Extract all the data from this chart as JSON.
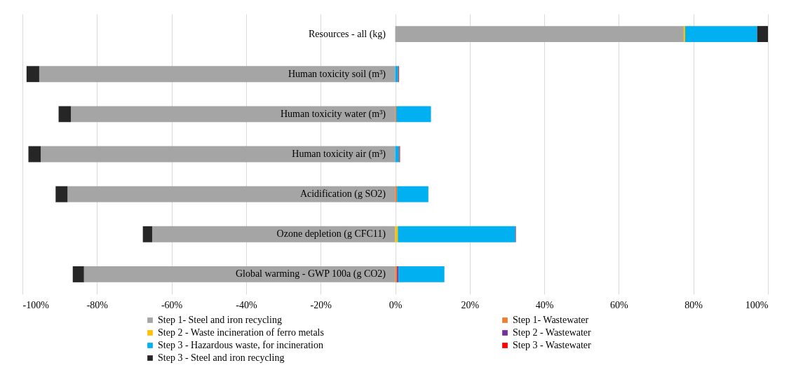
{
  "chart_data": {
    "type": "bar",
    "orientation": "horizontal",
    "stacked": true,
    "grid": "x",
    "legend": "bottom",
    "categories": [
      "Resources - all (kg)",
      "Human toxicity soil (m³)",
      "Human toxicity water  (m³)",
      "Human toxicity air (m³)",
      "Acidification (g SO2)",
      "Ozone depletion (g CFC11)",
      "Global warming - GWP 100a (g CO2)"
    ],
    "xlim": [
      -100,
      100
    ],
    "xticks": [
      {
        "value": -100,
        "label": "-100%"
      },
      {
        "value": -80,
        "label": "-80%"
      },
      {
        "value": -60,
        "label": "-60%"
      },
      {
        "value": -40,
        "label": "-40%"
      },
      {
        "value": -20,
        "label": "-20%"
      },
      {
        "value": 0,
        "label": "0%"
      },
      {
        "value": 20,
        "label": "20%"
      },
      {
        "value": 40,
        "label": "40%"
      },
      {
        "value": 60,
        "label": "60%"
      },
      {
        "value": 80,
        "label": "80%"
      },
      {
        "value": 100,
        "label": "100%"
      }
    ],
    "series": [
      {
        "name": "Step 1- Steel and iron recycling",
        "color": "#a5a5a5",
        "values": [
          77.4,
          -95.5,
          -87.0,
          -95.1,
          -87.9,
          -65.2,
          -83.5
        ]
      },
      {
        "name": "Step 1- Wastewater",
        "color": "#ed7d31",
        "values": [
          0,
          0,
          0.3,
          0,
          0.5,
          0,
          0.5
        ]
      },
      {
        "name": "Step 2 - Waste incineration of ferro metals",
        "color": "#ffc000",
        "values": [
          0.4,
          0,
          0,
          0,
          0,
          0.7,
          0
        ]
      },
      {
        "name": "Step 2 - Wastewater",
        "color": "#7030a0",
        "values": [
          0,
          0,
          0,
          0,
          0,
          0,
          0.4
        ]
      },
      {
        "name": "Step 3 - Hazardous waste, for incineration",
        "color": "#00b0f0",
        "values": [
          19.3,
          0.8,
          9.3,
          1.1,
          8.4,
          31.6,
          12.3
        ]
      },
      {
        "name": "Step 3 - Wastewater",
        "color": "#ff0000",
        "values": [
          0,
          0.2,
          0,
          0.2,
          0,
          0.1,
          null
        ]
      },
      {
        "name": "Step 3 - Steel and iron recycling",
        "color": "#262626",
        "values": [
          2.9,
          -3.4,
          -3.3,
          -3.3,
          -3.2,
          -2.5,
          -3.0
        ]
      }
    ]
  }
}
